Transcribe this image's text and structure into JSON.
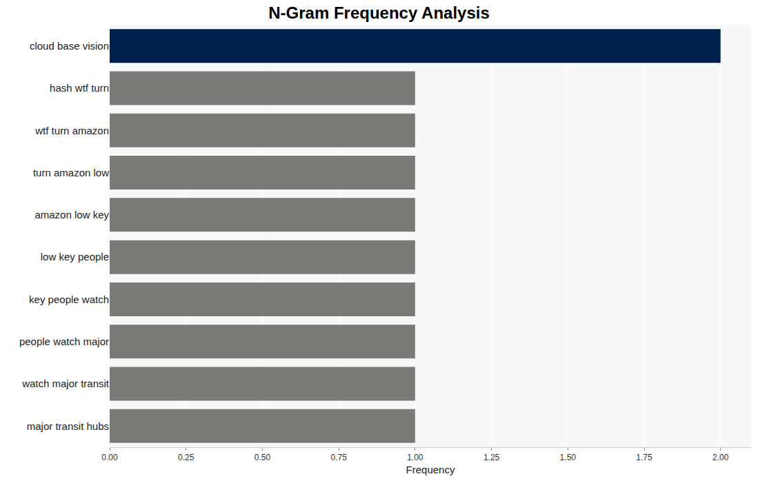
{
  "chart_data": {
    "type": "bar",
    "orientation": "horizontal",
    "title": "N-Gram Frequency Analysis",
    "x_label": "Frequency",
    "categories": [
      "cloud base vision",
      "hash wtf turn",
      "wtf turn amazon",
      "turn amazon low",
      "amazon low key",
      "low key people",
      "key people watch",
      "people watch major",
      "watch major transit",
      "major transit hubs"
    ],
    "values": [
      2,
      1,
      1,
      1,
      1,
      1,
      1,
      1,
      1,
      1
    ],
    "colors": [
      "#00214e",
      "#7b7a76",
      "#7b7a76",
      "#7b7a76",
      "#7b7a76",
      "#7b7a76",
      "#7b7a76",
      "#7b7a76",
      "#7b7a76",
      "#7b7a76"
    ],
    "xlim": [
      0,
      2.1
    ],
    "xticks": [
      {
        "value": 0,
        "label": "0.00"
      },
      {
        "value": 0.25,
        "label": "0.25"
      },
      {
        "value": 0.5,
        "label": "0.50"
      },
      {
        "value": 0.75,
        "label": "0.75"
      },
      {
        "value": 1,
        "label": "1.00"
      },
      {
        "value": 1.25,
        "label": "1.25"
      },
      {
        "value": 1.5,
        "label": "1.50"
      },
      {
        "value": 1.75,
        "label": "1.75"
      },
      {
        "value": 2,
        "label": "2.00"
      }
    ],
    "grid": true
  }
}
